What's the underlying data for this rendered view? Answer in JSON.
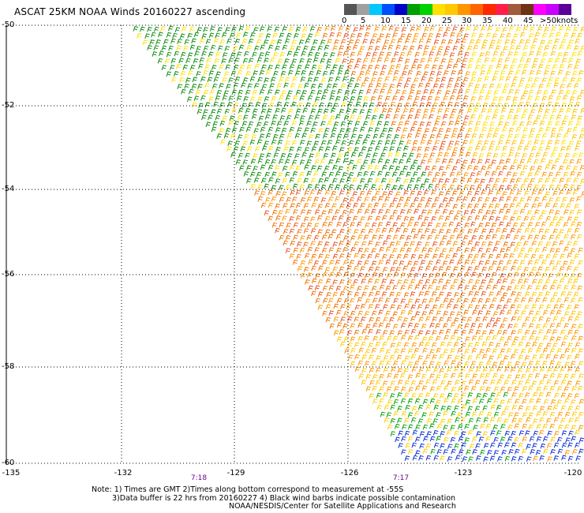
{
  "title": "ASCAT 25KM NOAA Winds 20160227 ascending",
  "legend": {
    "colors": [
      "#555555",
      "#a0a0a0",
      "#00c8ff",
      "#0050ff",
      "#0000c8",
      "#00a000",
      "#00d200",
      "#ffe000",
      "#ffc800",
      "#ff9600",
      "#ff6400",
      "#ff2800",
      "#ff1e4a",
      "#a05a3c",
      "#6e3214",
      "#ff00ff",
      "#c800ff",
      "#5a0096"
    ],
    "labels": [
      "0",
      "5",
      "10",
      "15",
      "20",
      "25",
      "30",
      "35",
      "40",
      "45",
      ">50"
    ],
    "unit": "knots"
  },
  "axes": {
    "lat_labels": [
      "-50",
      "-52",
      "-54",
      "-56",
      "-58",
      "-60"
    ],
    "lon_labels": [
      "-135",
      "-132",
      "-129",
      "-126",
      "-123",
      "-120"
    ],
    "time_labels": [
      "7:18",
      "7:17"
    ]
  },
  "notes": [
    "Note: 1) Times are GMT 2)Times along bottom correspond to measurement at -55S",
    "3)Data buffer is 22 hrs from 20160227 4) Black wind barbs indicate possible contamination",
    "NOAA/NESDIS/Center for Satellite Applications and Research"
  ]
}
